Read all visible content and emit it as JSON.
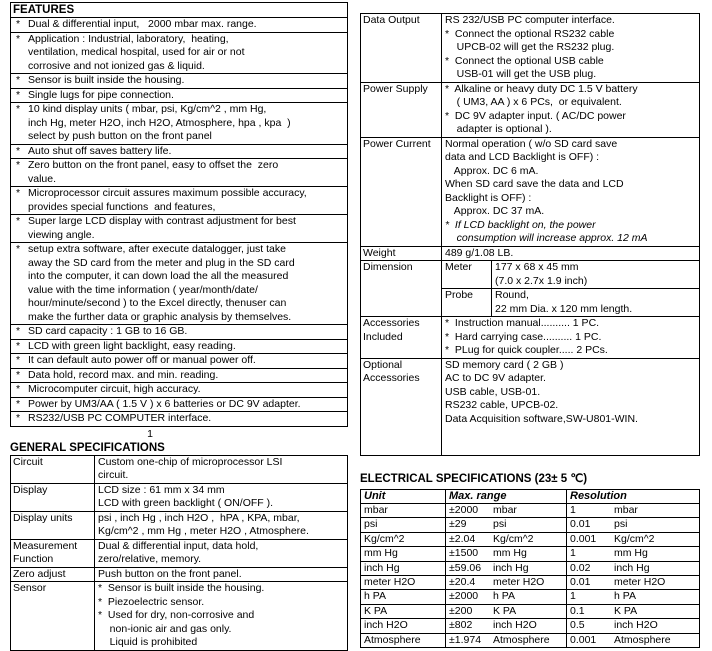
{
  "features": {
    "title": "FEATURES",
    "bullet": "*",
    "items": [
      "Dual & differential input,   2000 mbar max. range.",
      "Application : Industrial, laboratory,  heating,\nventilation, medical hospital, used for air or not\ncorrosive and not ionized gas & liquid.",
      "Sensor is built inside the housing.",
      "Single lugs for pipe connection.",
      "10 kind display units ( mbar, psi, Kg/cm^2 , mm Hg,\ninch Hg, meter H2O, inch H2O, Atmosphere, hpa , kpa  )\nselect by push button on the front panel",
      "Auto shut off saves battery life.",
      "Zero button on the front panel, easy to offset the  zero\nvalue.",
      "Microprocessor circuit assures maximum possible accuracy,\nprovides special functions  and features,",
      "Super large LCD display with contrast adjustment for best\nviewing angle.",
      "setup extra software, after execute datalogger, just take\naway the SD card from the meter and plug in the SD card\ninto the computer, it can down load the all the measured\nvalue with the time information ( year/month/date/\nhour/minute/second ) to the Excel directly, thenuser can\nmake the further data or graphic analysis by themselves.",
      "SD card capacity : 1 GB to 16 GB.",
      "LCD with green light backlight, easy reading.",
      "It can default auto power off or manual power off.",
      "Data hold, record max. and min. reading.",
      "Microcomputer circuit, high accuracy.",
      "Power by UM3/AA ( 1.5 V ) x 6 batteries or DC 9V adapter.",
      "RS232/USB PC COMPUTER interface."
    ]
  },
  "page_number": "1",
  "general_specs": {
    "title": "GENERAL SPECIFICATIONS",
    "rows": [
      {
        "label": "Circuit",
        "value": "Custom one-chip of microprocessor LSI\ncircuit."
      },
      {
        "label": "Display",
        "value": "LCD size : 61 mm x 34 mm\nLCD with green backlight ( ON/OFF )."
      },
      {
        "label": "Display units",
        "value": "psi , inch Hg , inch H2O ,  hPA , KPA, mbar,\nKg/cm^2 , mm Hg , meter H2O , Atmosphere."
      },
      {
        "label": "Measurement\nFunction",
        "value": "Dual & differential input, data hold,\nzero/relative, memory."
      },
      {
        "label": "Zero adjust",
        "value": "Push button on the front panel."
      },
      {
        "label": "Sensor",
        "value": "*  Sensor is built inside the housing.\n*  Piezoelectric sensor.\n*  Used for dry, non-corrosive and\n    non-ionic air and gas only.\n    Liquid is prohibited"
      }
    ]
  },
  "right_specs": {
    "rows": [
      {
        "label": "Data Output",
        "value": "RS 232/USB PC computer interface.\n*  Connect the optional RS232 cable\n    UPCB-02 will get the RS232 plug.\n*  Connect the optional USB cable\n    USB-01 will get the USB plug."
      },
      {
        "label": "Power Supply",
        "value": "*  Alkaline or heavy duty DC 1.5 V battery\n    ( UM3, AA ) x 6 PCs,  or equivalent.\n*  DC 9V adapter input. ( AC/DC power\n    adapter is optional )."
      },
      {
        "label": "Power Current",
        "value": "Normal operation ( w/o SD card save\ndata and LCD Backlight is OFF) :\n   Approx. DC 6 mA.\nWhen SD card save the data and LCD\nBacklight is OFF) :\n   Approx. DC 37 mA.",
        "note": "*  If LCD backlight on, the power\n    consumption will increase approx. 12 mA"
      },
      {
        "label": "Weight",
        "value": "489 g/1.08 LB."
      },
      {
        "label": "Dimension",
        "sub": [
          {
            "name": "Meter",
            "value": "177 x 68 x 45 mm\n(7.0 x 2.7x 1.9 inch)"
          },
          {
            "name": "Probe",
            "value": "Round,\n22 mm Dia. x 120 mm length."
          }
        ]
      },
      {
        "label": "Accessories\nIncluded",
        "value": "*  Instruction manual.......... 1 PC.\n*  Hard carrying case.......... 1 PC.\n*  PLug for quick coupler..... 2 PCs."
      },
      {
        "label": "Optional\nAccessories",
        "value": "SD memory card ( 2 GB )\nAC to DC 9V adapter.\nUSB cable, USB-01.\nRS232 cable, UPCB-02.\nData Acquisition software,SW-U801-WIN."
      }
    ]
  },
  "electrical": {
    "title": "ELECTRICAL SPECIFICATIONS (23± 5 ℃)",
    "headers": [
      "Unit",
      "Max. range",
      "Resolution"
    ],
    "rows": [
      {
        "unit": "mbar",
        "max_value": "±2000",
        "max_unit": "mbar",
        "res_value": "1",
        "res_unit": "mbar"
      },
      {
        "unit": "psi",
        "max_value": "±29",
        "max_unit": "psi",
        "res_value": "0.01",
        "res_unit": "psi"
      },
      {
        "unit": "Kg/cm^2",
        "max_value": "±2.04",
        "max_unit": "Kg/cm^2",
        "res_value": "0.001",
        "res_unit": "Kg/cm^2"
      },
      {
        "unit": "mm Hg",
        "max_value": "±1500",
        "max_unit": "mm Hg",
        "res_value": "1",
        "res_unit": "mm Hg"
      },
      {
        "unit": "inch Hg",
        "max_value": "±59.06",
        "max_unit": "inch Hg",
        "res_value": "0.02",
        "res_unit": "inch Hg"
      },
      {
        "unit": "meter H2O",
        "max_value": "±20.4",
        "max_unit": "meter H2O",
        "res_value": "0.01",
        "res_unit": "meter H2O"
      },
      {
        "unit": "h PA",
        "max_value": "±2000",
        "max_unit": "h PA",
        "res_value": "1",
        "res_unit": "h PA"
      },
      {
        "unit": "K PA",
        "max_value": "±200",
        "max_unit": "K PA",
        "res_value": "0.1",
        "res_unit": "K PA"
      },
      {
        "unit": "inch H2O",
        "max_value": "±802",
        "max_unit": "inch H2O",
        "res_value": "0.5",
        "res_unit": "inch H2O"
      },
      {
        "unit": "Atmosphere",
        "max_value": "±1.974",
        "max_unit": "Atmosphere",
        "res_value": "0.001",
        "res_unit": "Atmosphere"
      }
    ]
  }
}
